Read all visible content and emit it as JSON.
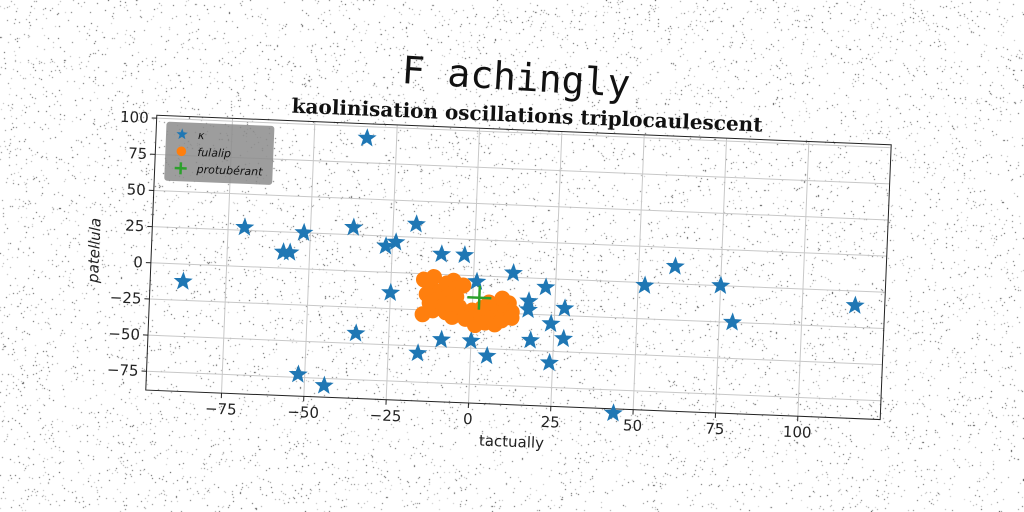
{
  "figure": {
    "suptitle": "F achingly"
  },
  "chart_data": {
    "type": "scatter",
    "title": "kaolinisation oscillations triplocaulescent",
    "xlabel": "tactually",
    "ylabel": "patellula",
    "xlim": [
      -98,
      125
    ],
    "ylim": [
      -88,
      102
    ],
    "xticks": [
      -75,
      -50,
      -25,
      0,
      25,
      50,
      75,
      100
    ],
    "yticks": [
      -75,
      -50,
      -25,
      0,
      25,
      50,
      75,
      100
    ],
    "grid": true,
    "legend_position": "top-left",
    "series": [
      {
        "name": "κ",
        "marker": "star",
        "color": "#1f77b4",
        "points": [
          [
            -88,
            -12
          ],
          [
            -70,
            27
          ],
          [
            -58,
            11
          ],
          [
            -56,
            11
          ],
          [
            -52,
            25
          ],
          [
            -52,
            -73
          ],
          [
            -44,
            -80
          ],
          [
            -37,
            30
          ],
          [
            -34,
            92
          ],
          [
            -35,
            -43
          ],
          [
            -27,
            18
          ],
          [
            -24,
            21
          ],
          [
            -25,
            -14
          ],
          [
            -18,
            34
          ],
          [
            -16,
            -55
          ],
          [
            -10,
            14
          ],
          [
            -9,
            -45
          ],
          [
            -3,
            14
          ],
          [
            1,
            -4
          ],
          [
            0,
            -45
          ],
          [
            5,
            -55
          ],
          [
            12,
            3
          ],
          [
            17,
            -16
          ],
          [
            17,
            -22
          ],
          [
            18,
            -43
          ],
          [
            22,
            -6
          ],
          [
            24,
            -31
          ],
          [
            24,
            -58
          ],
          [
            28,
            -20
          ],
          [
            28,
            -41
          ],
          [
            44,
            -91
          ],
          [
            52,
            -2
          ],
          [
            61,
            12
          ],
          [
            75,
            0
          ],
          [
            79,
            -25
          ],
          [
            116,
            -10
          ]
        ]
      },
      {
        "name": "fulalip",
        "marker": "circle",
        "color": "#ff7f0e",
        "points": [
          [
            -15,
            -4
          ],
          [
            -13,
            -8
          ],
          [
            -12,
            -2
          ],
          [
            -10,
            -12
          ],
          [
            -8,
            -6
          ],
          [
            -6,
            -4
          ],
          [
            -5,
            -9
          ],
          [
            -3,
            -7
          ],
          [
            -14,
            -14
          ],
          [
            -11,
            -18
          ],
          [
            -8,
            -16
          ],
          [
            -5,
            -15
          ],
          [
            -15,
            -28
          ],
          [
            -12,
            -25
          ],
          [
            -10,
            -23
          ],
          [
            -8,
            -26
          ],
          [
            -6,
            -29
          ],
          [
            -13,
            -20
          ],
          [
            -7,
            -20
          ],
          [
            -4,
            -22
          ],
          [
            -2,
            -26
          ],
          [
            0,
            -24
          ],
          [
            2,
            -30
          ],
          [
            4,
            -32
          ],
          [
            6,
            -26
          ],
          [
            8,
            -28
          ],
          [
            6,
            -20
          ],
          [
            10,
            -22
          ],
          [
            12,
            -24
          ],
          [
            11,
            -18
          ],
          [
            9,
            -15
          ],
          [
            5,
            -18
          ],
          [
            3,
            -22
          ],
          [
            7,
            -33
          ],
          [
            1,
            -34
          ],
          [
            -2,
            -30
          ],
          [
            9,
            -30
          ],
          [
            12,
            -28
          ]
        ]
      },
      {
        "name": "protubérant",
        "marker": "plus",
        "color": "#2ca02c",
        "points": [
          [
            2,
            -15
          ]
        ]
      }
    ]
  }
}
